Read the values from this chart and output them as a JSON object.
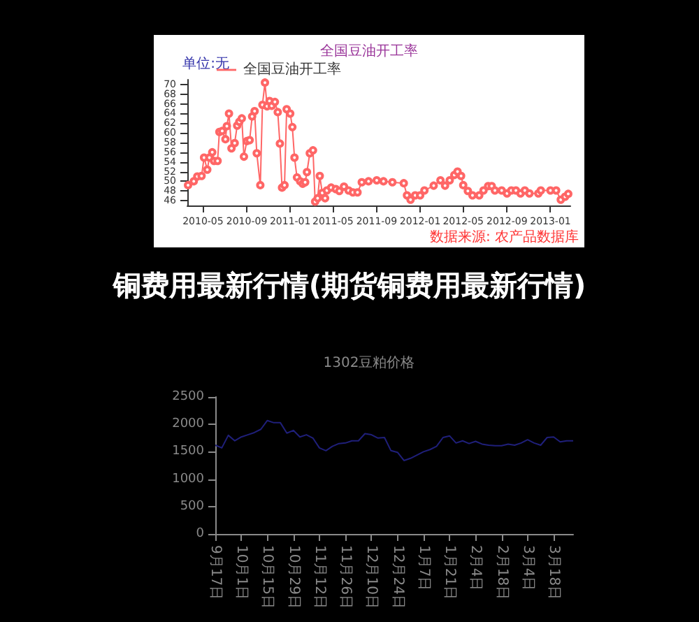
{
  "chart_data": [
    {
      "type": "line",
      "title": "全国豆油开工率",
      "ylabel": "单位:无",
      "annotations": [
        "数据来源: 农产品数据库"
      ],
      "legend": "top left",
      "marker": "circle",
      "grid": false,
      "xlim": [
        "2010-03-18",
        "2013-02-26"
      ],
      "xticks": [
        "2010-05",
        "2010-09",
        "2011-01",
        "2011-05",
        "2011-09",
        "2012-01",
        "2012-05",
        "2012-09",
        "2013-01"
      ],
      "ylim": [
        45,
        71
      ],
      "yticks": [
        46,
        48,
        50,
        52,
        54,
        56,
        58,
        60,
        62,
        64,
        66,
        68,
        70
      ],
      "x": [
        "2010-03-20",
        "2010-04-05",
        "2010-04-15",
        "2010-04-27",
        "2010-05-04",
        "2010-05-13",
        "2010-05-19",
        "2010-05-27",
        "2010-06-01",
        "2010-06-11",
        "2010-06-16",
        "2010-06-24",
        "2010-07-03",
        "2010-07-07",
        "2010-07-13",
        "2010-07-20",
        "2010-07-29",
        "2010-08-05",
        "2010-08-11",
        "2010-08-18",
        "2010-08-24",
        "2010-09-01",
        "2010-09-09",
        "2010-09-16",
        "2010-09-23",
        "2010-09-29",
        "2010-10-09",
        "2010-10-15",
        "2010-10-22",
        "2010-10-28",
        "2010-11-04",
        "2010-11-10",
        "2010-11-19",
        "2010-11-27",
        "2010-12-03",
        "2010-12-09",
        "2010-12-16",
        "2010-12-22",
        "2011-01-01",
        "2011-01-07",
        "2011-01-13",
        "2011-01-20",
        "2011-01-29",
        "2011-02-05",
        "2011-02-12",
        "2011-02-17",
        "2011-02-25",
        "2011-03-06",
        "2011-03-12",
        "2011-03-19",
        "2011-03-25",
        "2011-04-01",
        "2011-04-09",
        "2011-04-14",
        "2011-04-26",
        "2011-05-09",
        "2011-05-19",
        "2011-06-01",
        "2011-06-14",
        "2011-06-26",
        "2011-07-09",
        "2011-07-21",
        "2011-08-09",
        "2011-09-01",
        "2011-09-20",
        "2011-10-15",
        "2011-11-16",
        "2011-11-25",
        "2011-12-05",
        "2011-12-18",
        "2012-01-01",
        "2012-01-13",
        "2012-02-08",
        "2012-02-27",
        "2012-03-11",
        "2012-03-24",
        "2012-04-06",
        "2012-04-15",
        "2012-04-25",
        "2012-05-01",
        "2012-05-14",
        "2012-05-27",
        "2012-06-15",
        "2012-06-27",
        "2012-07-10",
        "2012-07-20",
        "2012-07-29",
        "2012-08-17",
        "2012-09-01",
        "2012-09-13",
        "2012-09-26",
        "2012-10-09",
        "2012-10-21",
        "2012-11-03",
        "2012-11-28",
        "2012-12-05",
        "2013-01-01",
        "2013-01-17",
        "2013-01-30",
        "2013-02-11",
        "2013-02-20"
      ],
      "series": [
        {
          "name": "全国豆油开工率",
          "color": "#ff6666",
          "values": [
            49.2,
            50,
            51,
            51.1,
            54.9,
            52.4,
            54.9,
            56,
            54.2,
            54.2,
            60.2,
            60.4,
            58.7,
            61.4,
            64,
            56.8,
            57.9,
            61.5,
            62.3,
            63,
            55.1,
            58.3,
            58.5,
            63.4,
            64.5,
            55.8,
            49.2,
            65.8,
            70.4,
            65.5,
            66.6,
            65.6,
            66.4,
            64.3,
            57.8,
            48.7,
            49.2,
            64.9,
            64,
            61.2,
            54.9,
            50.8,
            50,
            49.5,
            49.8,
            51.9,
            55.8,
            56.4,
            45.8,
            46.5,
            51.1,
            47.6,
            46.5,
            48.1,
            48.7,
            48.4,
            48,
            48.9,
            48.1,
            47.7,
            47.7,
            49.8,
            50,
            50.2,
            50,
            49.8,
            49.6,
            47.1,
            46.2,
            47.1,
            47.1,
            48.1,
            49.1,
            50.2,
            49.1,
            50.2,
            51.3,
            52,
            51.1,
            49.2,
            48,
            47.1,
            47.1,
            48.1,
            49,
            49,
            48.1,
            48.1,
            47.5,
            48.1,
            48.1,
            47.5,
            48.1,
            47.5,
            47.5,
            48.1,
            48.1,
            48.1,
            46.2,
            46.8,
            47.4
          ]
        }
      ]
    },
    {
      "type": "other",
      "title": "铜费用最新行情(期货铜费用最新行情)"
    },
    {
      "type": "line",
      "title": "1302豆粕价格",
      "grid": false,
      "marker": "none",
      "categories": [
        "9月17日",
        null,
        null,
        null,
        "10月1日",
        null,
        null,
        null,
        "10月15日",
        null,
        null,
        null,
        "10月29日",
        null,
        null,
        null,
        "11月12日",
        null,
        null,
        null,
        "11月26日",
        null,
        null,
        null,
        "12月10日",
        null,
        null,
        null,
        "12月24日",
        null,
        null,
        null,
        "1月7日",
        null,
        null,
        null,
        "1月21日",
        null,
        null,
        null,
        "2月4日",
        null,
        null,
        null,
        "2月18日",
        null,
        null,
        null,
        "3月4日",
        null,
        null,
        null,
        "3月18日",
        null,
        null,
        null
      ],
      "ylim": [
        0,
        2500
      ],
      "yticks": [
        0,
        500,
        1000,
        1500,
        2000,
        2500
      ],
      "series": [
        {
          "color": "#1f1f7a",
          "values": [
            1620,
            1570,
            1800,
            1700,
            1770,
            1810,
            1850,
            1910,
            2070,
            2030,
            2030,
            1840,
            1890,
            1770,
            1810,
            1750,
            1570,
            1520,
            1600,
            1650,
            1660,
            1700,
            1700,
            1830,
            1810,
            1750,
            1760,
            1520,
            1490,
            1340,
            1380,
            1440,
            1500,
            1540,
            1600,
            1760,
            1790,
            1660,
            1700,
            1650,
            1690,
            1640,
            1620,
            1610,
            1610,
            1640,
            1620,
            1660,
            1720,
            1660,
            1620,
            1760,
            1770,
            1680,
            1700,
            1700
          ]
        }
      ]
    }
  ]
}
